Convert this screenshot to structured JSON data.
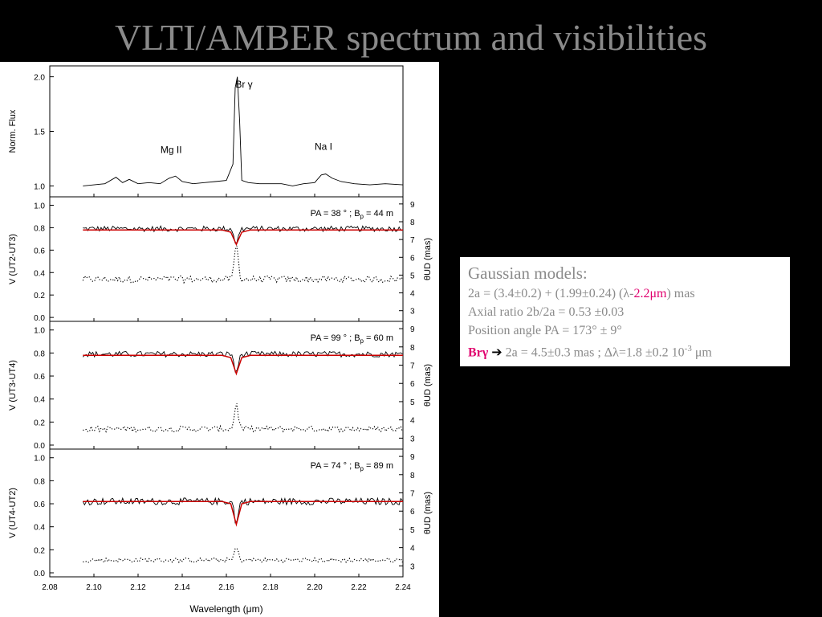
{
  "slide": {
    "title": "VLTI/AMBER spectrum and visibilities"
  },
  "model_box": {
    "heading": "Gaussian models:",
    "line1_pre": "2a = (3.4±0.2) + (1.99±0.24) (λ-",
    "line1_hl": "2.2μm",
    "line1_post": ")  mas",
    "line2": "Axial ratio 2b/2a = 0.53 ±0.03",
    "line3": "Position angle PA = 173° ± 9°",
    "line4_lead": "Brγ",
    "line4_arrow": "➔",
    "line4_pre": " 2a = 4.5±0.3 mas ; Δλ=1.8 ±0.2 10",
    "line4_sup": "-3",
    "line4_post": " μm"
  },
  "colors": {
    "fit_line": "#cc0000",
    "highlight": "#e0006e",
    "title": "#8a8a8a"
  },
  "chart_data": [
    {
      "type": "line",
      "panel": "spectrum",
      "ylabel": "Norm. Flux",
      "ylim": [
        0.9,
        2.1
      ],
      "yticks": [
        "1.0",
        "1.5",
        "2.0"
      ],
      "xlim": [
        2.08,
        2.24
      ],
      "annotations": [
        {
          "text": "Br γ",
          "x": 2.168,
          "y": 1.9
        },
        {
          "text": "Mg II",
          "x": 2.135,
          "y": 1.3
        },
        {
          "text": "Na I",
          "x": 2.204,
          "y": 1.33
        }
      ],
      "series": [
        {
          "x": [
            2.095,
            2.1,
            2.105,
            2.11,
            2.113,
            2.116,
            2.12,
            2.125,
            2.13,
            2.134,
            2.137,
            2.14,
            2.145,
            2.15,
            2.155,
            2.16,
            2.163,
            2.164,
            2.165,
            2.166,
            2.167,
            2.17,
            2.175,
            2.18,
            2.185,
            2.19,
            2.195,
            2.2,
            2.203,
            2.205,
            2.208,
            2.212,
            2.218,
            2.225,
            2.232,
            2.24
          ],
          "y": [
            1.0,
            1.01,
            1.02,
            1.08,
            1.03,
            1.06,
            1.02,
            1.03,
            1.02,
            1.07,
            1.09,
            1.04,
            1.02,
            1.03,
            1.04,
            1.05,
            1.2,
            1.9,
            2.0,
            1.6,
            1.05,
            1.03,
            1.02,
            1.02,
            1.02,
            1.0,
            1.02,
            1.03,
            1.1,
            1.11,
            1.07,
            1.04,
            1.02,
            1.01,
            1.02,
            1.01
          ]
        }
      ]
    },
    {
      "type": "line",
      "panel": "UT2-UT3",
      "ylabel": "V (UT2-UT3)",
      "y2label": "θUD (mas)",
      "ylim": [
        0.0,
        1.0
      ],
      "y2lim": [
        2.4,
        9.4
      ],
      "yticks": [
        "0.0",
        "0.2",
        "0.4",
        "0.6",
        "0.8",
        "1.0"
      ],
      "y2ticks": [
        "3",
        "4",
        "5",
        "6",
        "7",
        "8",
        "9"
      ],
      "label_pre": "PA = 38 ° ; B",
      "label_post": " = 44 m",
      "fit": {
        "x": [
          2.095,
          2.158,
          2.162,
          2.1645,
          2.167,
          2.171,
          2.24
        ],
        "y": [
          0.78,
          0.78,
          0.76,
          0.65,
          0.76,
          0.78,
          0.78
        ]
      },
      "visibility": {
        "base": 0.79,
        "dip": 0.65,
        "noise": 0.025
      },
      "diameter": {
        "base": 0.34,
        "peak": 0.65,
        "noise": 0.03
      }
    },
    {
      "type": "line",
      "panel": "UT3-UT4",
      "ylabel": "V (UT3-UT4)",
      "y2label": "θUD (mas)",
      "ylim": [
        0.0,
        1.0
      ],
      "y2lim": [
        2.4,
        9.4
      ],
      "yticks": [
        "0.0",
        "0.2",
        "0.4",
        "0.6",
        "0.8",
        "1.0"
      ],
      "y2ticks": [
        "3",
        "4",
        "5",
        "6",
        "7",
        "8",
        "9"
      ],
      "label_pre": "PA = 99 ° ; B",
      "label_post": " = 60 m",
      "fit": {
        "x": [
          2.095,
          2.158,
          2.162,
          2.1645,
          2.167,
          2.171,
          2.24
        ],
        "y": [
          0.78,
          0.78,
          0.76,
          0.62,
          0.76,
          0.78,
          0.78
        ]
      },
      "visibility": {
        "base": 0.79,
        "dip": 0.62,
        "noise": 0.025
      },
      "diameter": {
        "base": 0.14,
        "peak": 0.36,
        "noise": 0.025
      }
    },
    {
      "type": "line",
      "panel": "UT4-UT2",
      "ylabel": "V (UT4-UT2)",
      "y2label": "θUD (mas)",
      "ylim": [
        0.0,
        1.0
      ],
      "y2lim": [
        2.4,
        9.4
      ],
      "yticks": [
        "0.0",
        "0.2",
        "0.4",
        "0.6",
        "0.8",
        "1.0"
      ],
      "y2ticks": [
        "3",
        "4",
        "5",
        "6",
        "7",
        "8",
        "9"
      ],
      "label_pre": "PA = 74 ° ; B",
      "label_post": " = 89 m",
      "fit": {
        "x": [
          2.095,
          2.158,
          2.162,
          2.1645,
          2.167,
          2.171,
          2.24
        ],
        "y": [
          0.62,
          0.62,
          0.6,
          0.42,
          0.6,
          0.62,
          0.62
        ]
      },
      "visibility": {
        "base": 0.62,
        "dip": 0.43,
        "noise": 0.03
      },
      "diameter": {
        "base": 0.11,
        "peak": 0.22,
        "noise": 0.02
      },
      "xlabel": "Wavelength (μm)",
      "xticks": [
        "2.08",
        "2.10",
        "2.12",
        "2.14",
        "2.16",
        "2.18",
        "2.20",
        "2.22",
        "2.24"
      ]
    }
  ]
}
